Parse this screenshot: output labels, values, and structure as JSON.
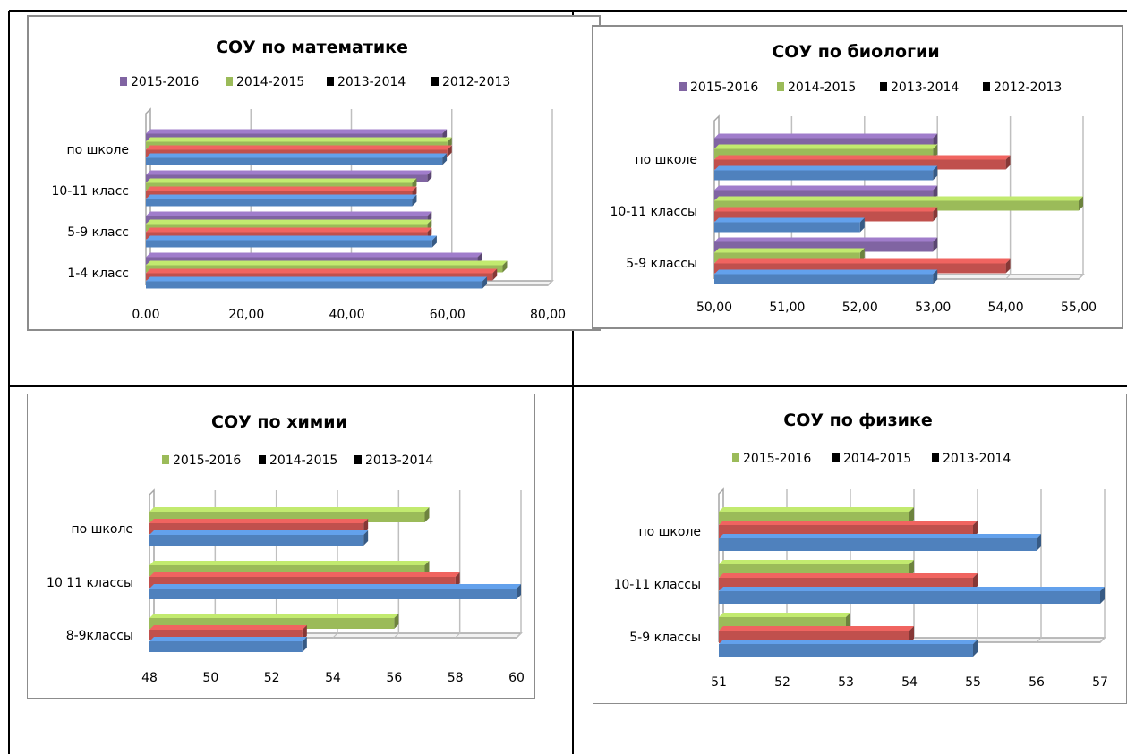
{
  "colors": {
    "purple": "#8064a2",
    "green": "#9bbb59",
    "red": "#c0504d",
    "blue": "#4f81bd",
    "legend_marker": "#000000"
  },
  "chart_data": [
    {
      "id": "math",
      "type": "bar",
      "orientation": "horizontal",
      "title": "СОУ по математике",
      "legend": [
        "2015-2016",
        "2014-2015",
        "2013-2014",
        "2012-2013"
      ],
      "legend_colors": [
        "#8064a2",
        "#9bbb59",
        "#000000",
        "#000000"
      ],
      "legend_position": "top",
      "categories": [
        "по школе",
        "10-11 класс",
        "5-9 класс",
        "1-4 класс"
      ],
      "series_colors": [
        "#8064a2",
        "#9bbb59",
        "#c0504d",
        "#4f81bd"
      ],
      "values": [
        [
          59,
          60,
          60,
          59
        ],
        [
          56,
          53,
          53,
          53
        ],
        [
          56,
          56,
          56,
          57
        ],
        [
          66,
          71,
          69,
          67
        ]
      ],
      "xlim": [
        0,
        80
      ],
      "xticks": [
        "0.00",
        "20,00",
        "40,00",
        "60,00",
        "80,00"
      ],
      "grid": "vertical"
    },
    {
      "id": "bio",
      "type": "bar",
      "orientation": "horizontal",
      "title": "СОУ по биологии",
      "legend": [
        "2015-2016",
        "2014-2015",
        "2013-2014",
        "2012-2013"
      ],
      "legend_colors": [
        "#8064a2",
        "#9bbb59",
        "#000000",
        "#000000"
      ],
      "legend_position": "top",
      "categories": [
        "по школе",
        "10-11 классы",
        "5-9 классы"
      ],
      "series_colors": [
        "#8064a2",
        "#9bbb59",
        "#c0504d",
        "#4f81bd"
      ],
      "values": [
        [
          53,
          53,
          54,
          53
        ],
        [
          53,
          55,
          53,
          52
        ],
        [
          53,
          52,
          54,
          53
        ]
      ],
      "xlim": [
        50,
        55
      ],
      "xticks": [
        "50,00",
        "51,00",
        "52,00",
        "53,00",
        "54,00",
        "55,00"
      ],
      "grid": "vertical"
    },
    {
      "id": "chem",
      "type": "bar",
      "orientation": "horizontal",
      "title": "СОУ по химии",
      "legend": [
        "2015-2016",
        "2014-2015",
        "2013-2014"
      ],
      "legend_colors": [
        "#9bbb59",
        "#000000",
        "#000000"
      ],
      "legend_position": "top",
      "categories": [
        "по школе",
        "10 11 классы",
        "8-9классы"
      ],
      "series_colors": [
        "#9bbb59",
        "#c0504d",
        "#4f81bd"
      ],
      "values": [
        [
          57,
          55,
          55
        ],
        [
          57,
          58,
          60
        ],
        [
          56,
          53,
          53
        ]
      ],
      "xlim": [
        48,
        60
      ],
      "xticks": [
        "48",
        "50",
        "52",
        "54",
        "56",
        "58",
        "60"
      ],
      "grid": "vertical"
    },
    {
      "id": "phys",
      "type": "bar",
      "orientation": "horizontal",
      "title": "СОУ по физике",
      "legend": [
        "2015-2016",
        "2014-2015",
        "2013-2014"
      ],
      "legend_colors": [
        "#9bbb59",
        "#000000",
        "#000000"
      ],
      "legend_position": "top",
      "categories": [
        "по  школе",
        "10-11 классы",
        "5-9 классы"
      ],
      "series_colors": [
        "#9bbb59",
        "#c0504d",
        "#4f81bd"
      ],
      "values": [
        [
          54,
          55,
          56
        ],
        [
          54,
          55,
          57
        ],
        [
          53,
          54,
          55
        ]
      ],
      "xlim": [
        51,
        57
      ],
      "xticks": [
        "51",
        "52",
        "53",
        "54",
        "55",
        "56",
        "57"
      ],
      "grid": "vertical"
    }
  ]
}
